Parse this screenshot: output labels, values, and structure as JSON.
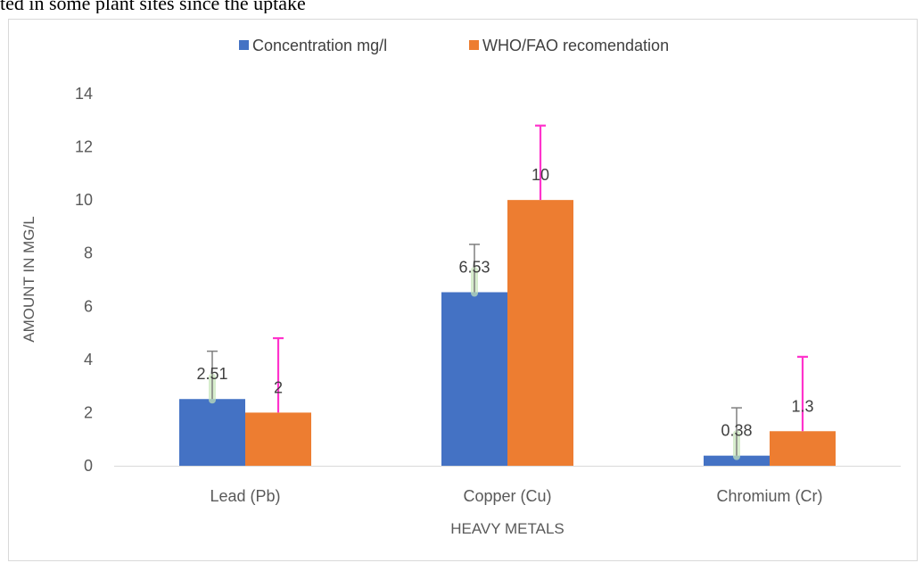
{
  "caption_fragment": "ted in some plant sites since the uptake",
  "chart_data": {
    "type": "bar",
    "title": "",
    "xlabel": "HEAVY METALS",
    "ylabel": "AMOUNT IN MG/L",
    "categories": [
      "Lead (Pb)",
      "Copper (Cu)",
      "Chromium (Cr)"
    ],
    "ylim": [
      0,
      14
    ],
    "yticks": [
      0,
      2,
      4,
      6,
      8,
      10,
      12,
      14
    ],
    "gridlines": false,
    "legend_position": "top",
    "series": [
      {
        "name": "Concentration  mg/l",
        "color": "#4472c4",
        "values": [
          2.51,
          6.53,
          0.38
        ],
        "data_labels": [
          "2.51",
          "6.53",
          "0.38"
        ],
        "error_upper": [
          1.8,
          1.8,
          1.8
        ],
        "error_color": "#7f7f7f",
        "error_glow_color": "#c6e6b8"
      },
      {
        "name": "WHO/FAO recomendation",
        "color": "#ed7d31",
        "values": [
          2,
          10,
          1.3
        ],
        "data_labels": [
          "2",
          "10",
          "1.3"
        ],
        "error_upper": [
          2.8,
          2.8,
          2.8
        ],
        "error_color": "#ff33cc"
      }
    ]
  }
}
